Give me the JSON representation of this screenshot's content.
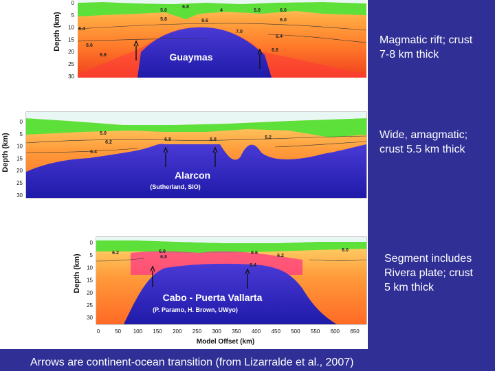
{
  "slide": {
    "colors": {
      "panel_background": "#2f2f96",
      "label_text": "#ffffff"
    },
    "caption": "Arrows are continent-ocean transition (from Lizarralde et al., 2007)"
  },
  "sections": [
    {
      "id": "guaymas",
      "name": "Guaymas",
      "credit": "",
      "description": "Magmatic rift; crust 7-8 km thick",
      "y_axis_label": "Depth (km)",
      "y_ticks": [
        "0",
        "5",
        "10",
        "15",
        "20",
        "25",
        "30"
      ],
      "velocity_labels": [
        "5.0",
        "5.8",
        "6.0",
        "6.4",
        "6.6",
        "6.8",
        "7.0",
        "8.6",
        "4",
        "5.0",
        "6.0",
        "6.4",
        "6.6",
        "6.8"
      ]
    },
    {
      "id": "alarcon",
      "name": "Alarcon",
      "credit": "(Sutherland, SIO)",
      "description": "Wide, amagmatic; crust 5.5 km thick",
      "y_axis_label": "Depth (km)",
      "y_ticks": [
        "0",
        "5",
        "10",
        "15",
        "20",
        "25",
        "30"
      ],
      "velocity_labels": [
        "5.0",
        "6.2",
        "6.4",
        "6.8",
        "6.8",
        "5.2"
      ]
    },
    {
      "id": "cabo",
      "name": "Cabo - Puerta Vallarta",
      "credit": "(P. Paramo, H. Brown, UWyo)",
      "description": "Segment includes Rivera plate; crust 5 km thick",
      "y_axis_label": "Depth (km)",
      "y_ticks": [
        "0",
        "5",
        "10",
        "15",
        "20",
        "25",
        "30"
      ],
      "x_ticks": [
        "0",
        "50",
        "100",
        "150",
        "200",
        "250",
        "300",
        "350",
        "400",
        "450",
        "500",
        "550",
        "600",
        "650"
      ],
      "x_axis_label": "Model Offset (km)",
      "velocity_labels": [
        "6.2",
        "6.8",
        "6.4",
        "6.8",
        "6.6",
        "6.2",
        "6.0"
      ]
    }
  ]
}
